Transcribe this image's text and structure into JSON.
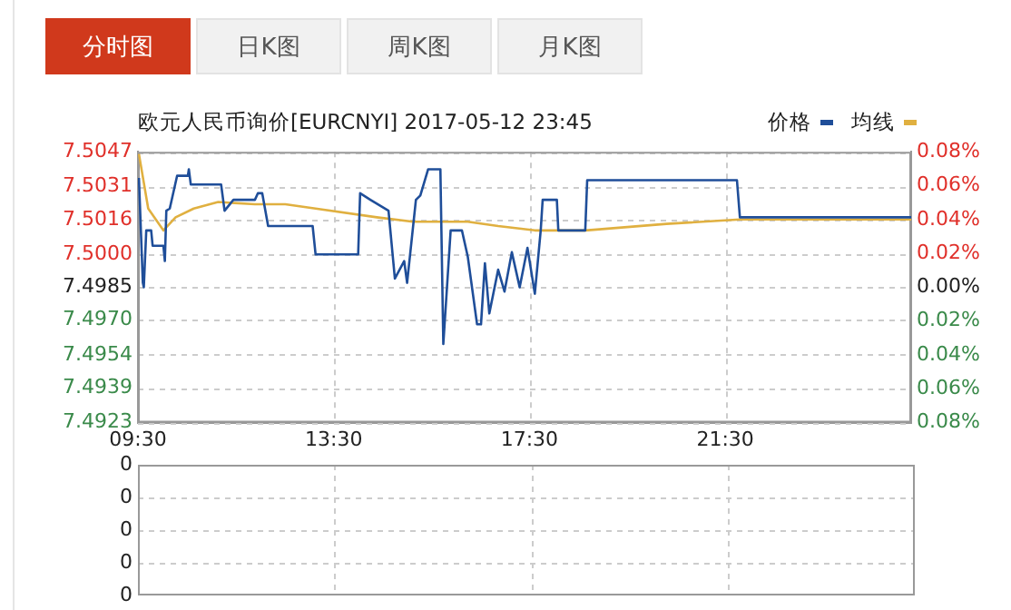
{
  "chart_data": [
    {
      "type": "line",
      "title": "欧元人民币询价[EURCNYI] 2017-05-12 23:45",
      "annotations": [
        "分时图",
        "日K图",
        "周K图",
        "月K图"
      ],
      "legend": "top right",
      "grid": true,
      "marker": "none",
      "xlim": [
        9.5,
        25.3
      ],
      "xticks": [
        {
          "value": 9.5,
          "label": "09:30"
        },
        {
          "value": 13.5,
          "label": "13:30"
        },
        {
          "value": 17.5,
          "label": "17:30"
        },
        {
          "value": 21.5,
          "label": "21:30"
        }
      ],
      "ylim": [
        7.4923,
        7.5047
      ],
      "yticks": [
        7.4923,
        7.4939,
        7.4954,
        {
          "value": 7.497,
          "label": "7.4970"
        },
        7.4985,
        {
          "value": 7.5,
          "label": "7.5000"
        },
        7.5016,
        7.5031,
        7.5047
      ],
      "y2lim": [
        -0.08,
        0.08
      ],
      "y2ticks": [
        {
          "value": -0.08,
          "label": "0.08%"
        },
        {
          "value": -0.06,
          "label": "0.06%"
        },
        {
          "value": -0.04,
          "label": "0.04%"
        },
        {
          "value": -0.02,
          "label": "0.02%"
        },
        {
          "value": 0,
          "label": "0.00%"
        },
        {
          "value": 0.02,
          "label": "0.02%"
        },
        {
          "value": 0.04,
          "label": "0.04%"
        },
        {
          "value": 0.06,
          "label": "0.06%"
        },
        {
          "value": 0.08,
          "label": "0.08%"
        }
      ],
      "series": [
        {
          "name": "价格",
          "color": "#1f4e99",
          "x": [
            9.52,
            9.6,
            9.62,
            9.67,
            9.77,
            9.8,
            10.02,
            10.05,
            10.08,
            10.15,
            10.3,
            10.52,
            10.54,
            10.58,
            11.2,
            11.27,
            11.45,
            11.89,
            11.95,
            12.04,
            12.16,
            13.07,
            13.13,
            14.0,
            14.04,
            14.25,
            14.62,
            14.75,
            14.94,
            15.0,
            15.18,
            15.27,
            15.43,
            15.68,
            15.74,
            15.89,
            16.12,
            16.24,
            16.43,
            16.51,
            16.59,
            16.68,
            16.86,
            16.99,
            17.14,
            17.3,
            17.46,
            17.61,
            17.73,
            17.77,
            18.06,
            18.09,
            18.64,
            18.68,
            21.74,
            21.8,
            25.3
          ],
          "values": [
            7.5035,
            7.4987,
            7.4985,
            7.5011,
            7.5011,
            7.5004,
            7.5004,
            7.4997,
            7.502,
            7.5021,
            7.5036,
            7.5036,
            7.5039,
            7.5032,
            7.5032,
            7.502,
            7.5025,
            7.5025,
            7.5028,
            7.5028,
            7.5013,
            7.5013,
            7.5,
            7.5,
            7.5028,
            7.5025,
            7.502,
            7.4989,
            7.4997,
            7.4987,
            7.5025,
            7.5027,
            7.5039,
            7.5039,
            7.4959,
            7.5011,
            7.5011,
            7.4999,
            7.4968,
            7.4968,
            7.4996,
            7.4973,
            7.4993,
            7.4983,
            7.5001,
            7.4985,
            7.5003,
            7.4982,
            7.5011,
            7.5025,
            7.5025,
            7.5011,
            7.5011,
            7.5034,
            7.5034,
            7.5017,
            7.5017
          ]
        },
        {
          "name": "均线",
          "color": "#e0b040",
          "x": [
            9.52,
            9.71,
            10.02,
            10.27,
            10.64,
            11.14,
            11.89,
            12.51,
            13.13,
            14.38,
            15.12,
            16.24,
            16.86,
            17.61,
            18.64,
            20.3,
            21.8,
            25.3
          ],
          "values": [
            7.5046,
            7.5021,
            7.5011,
            7.5017,
            7.5021,
            7.5024,
            7.5023,
            7.5023,
            7.5021,
            7.5017,
            7.5015,
            7.5015,
            7.5013,
            7.5011,
            7.5011,
            7.5014,
            7.5016,
            7.5016
          ]
        }
      ]
    },
    {
      "type": "other",
      "annotations": [
        "0",
        "0",
        "0",
        "0",
        "0"
      ]
    }
  ]
}
